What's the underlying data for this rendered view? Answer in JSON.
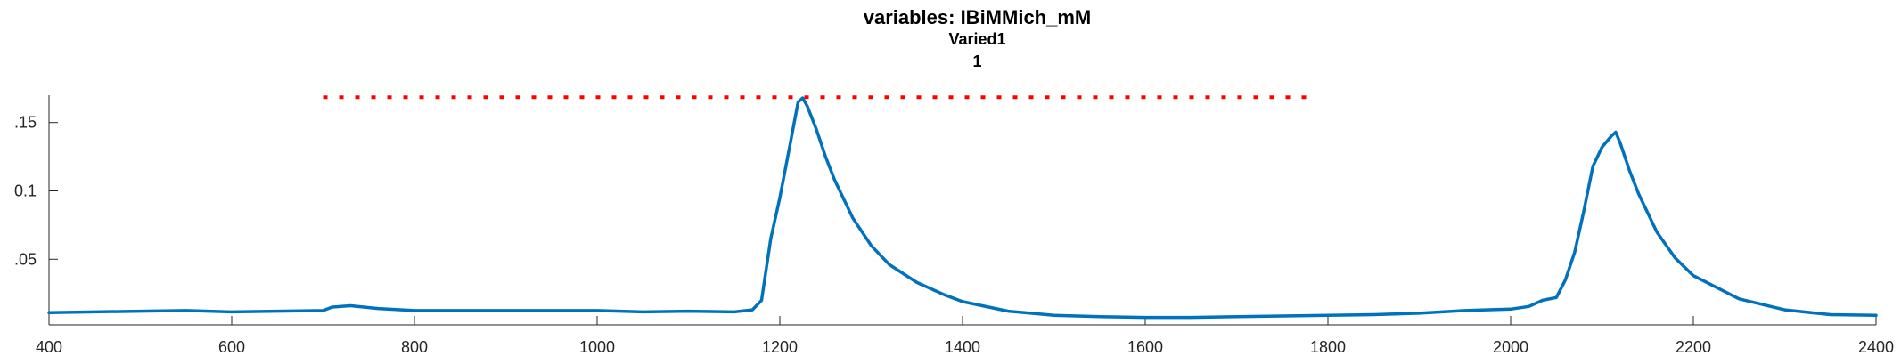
{
  "chart_data": {
    "type": "line",
    "title": "variables: IBiMMich_mM",
    "subtitle_lines": [
      "Varied1",
      "1"
    ],
    "xlabel": "",
    "ylabel": "",
    "xlim": [
      400,
      2400
    ],
    "ylim": [
      0.002,
      0.17
    ],
    "x_ticks": [
      400,
      600,
      800,
      1000,
      1200,
      1400,
      1600,
      1800,
      2000,
      2200,
      2400
    ],
    "y_ticks": [
      0.05,
      0.1,
      0.15
    ],
    "y_tick_labels": [
      ".05",
      "0.1",
      ".15"
    ],
    "grid": false,
    "series": [
      {
        "color": "#0072BD",
        "x": [
          400,
          450,
          500,
          550,
          600,
          650,
          700,
          710,
          730,
          760,
          800,
          850,
          900,
          950,
          1000,
          1050,
          1100,
          1150,
          1170,
          1180,
          1190,
          1200,
          1210,
          1220,
          1225,
          1230,
          1240,
          1250,
          1260,
          1280,
          1300,
          1320,
          1350,
          1380,
          1400,
          1450,
          1500,
          1550,
          1600,
          1650,
          1700,
          1750,
          1800,
          1850,
          1900,
          1950,
          2000,
          2020,
          2035,
          2050,
          2060,
          2070,
          2080,
          2090,
          2100,
          2110,
          2115,
          2120,
          2130,
          2140,
          2160,
          2180,
          2200,
          2250,
          2300,
          2350,
          2400
        ],
        "y": [
          0.011,
          0.0115,
          0.012,
          0.0125,
          0.0115,
          0.012,
          0.0125,
          0.015,
          0.016,
          0.014,
          0.0125,
          0.0125,
          0.0125,
          0.0125,
          0.0125,
          0.0115,
          0.012,
          0.0115,
          0.013,
          0.02,
          0.065,
          0.095,
          0.13,
          0.165,
          0.168,
          0.162,
          0.145,
          0.125,
          0.108,
          0.08,
          0.06,
          0.046,
          0.033,
          0.024,
          0.019,
          0.012,
          0.009,
          0.008,
          0.0075,
          0.0075,
          0.008,
          0.0085,
          0.009,
          0.0095,
          0.0105,
          0.0125,
          0.0135,
          0.0155,
          0.02,
          0.022,
          0.035,
          0.055,
          0.085,
          0.118,
          0.132,
          0.14,
          0.143,
          0.135,
          0.115,
          0.098,
          0.07,
          0.051,
          0.038,
          0.021,
          0.013,
          0.0095,
          0.009
        ]
      },
      {
        "color": "#FF0000",
        "style": "dotted",
        "x": [
          700,
          1780
        ],
        "y": [
          0.1685,
          0.1685
        ]
      }
    ]
  }
}
